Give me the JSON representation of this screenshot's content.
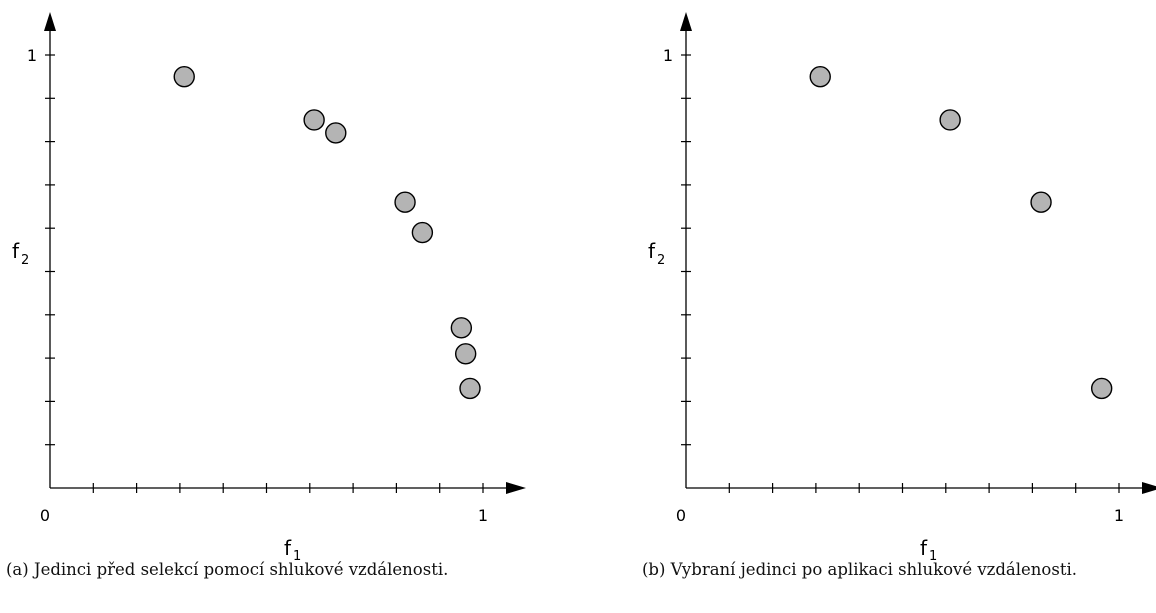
{
  "chart_data": [
    {
      "type": "scatter",
      "panel": "a",
      "xlabel": "f",
      "xlabel_sub": "1",
      "ylabel": "f",
      "ylabel_sub": "2",
      "xlim": [
        0,
        1
      ],
      "ylim": [
        0,
        1
      ],
      "x_tick_count": 10,
      "y_tick_count": 10,
      "x_tick_labels": [
        "0",
        "1"
      ],
      "y_tick_labels": [
        "1"
      ],
      "marker_fill": "#b4b4b4",
      "marker_stroke": "#000000",
      "points": [
        {
          "x": 0.31,
          "y": 0.95
        },
        {
          "x": 0.61,
          "y": 0.85
        },
        {
          "x": 0.66,
          "y": 0.82
        },
        {
          "x": 0.82,
          "y": 0.66
        },
        {
          "x": 0.86,
          "y": 0.59
        },
        {
          "x": 0.95,
          "y": 0.37
        },
        {
          "x": 0.96,
          "y": 0.31
        },
        {
          "x": 0.97,
          "y": 0.23
        }
      ],
      "caption": "(a) Jedinci před selekcí pomocí shlukové vzdálenosti."
    },
    {
      "type": "scatter",
      "panel": "b",
      "xlabel": "f",
      "xlabel_sub": "1",
      "ylabel": "f",
      "ylabel_sub": "2",
      "xlim": [
        0,
        1
      ],
      "ylim": [
        0,
        1
      ],
      "x_tick_count": 10,
      "y_tick_count": 10,
      "x_tick_labels": [
        "0",
        "1"
      ],
      "y_tick_labels": [
        "1"
      ],
      "marker_fill": "#b4b4b4",
      "marker_stroke": "#000000",
      "points": [
        {
          "x": 0.31,
          "y": 0.95
        },
        {
          "x": 0.61,
          "y": 0.85
        },
        {
          "x": 0.82,
          "y": 0.66
        },
        {
          "x": 0.96,
          "y": 0.23
        }
      ],
      "caption": "(b) Vybraní jedinci po aplikaci shlukové vzdálenosti."
    }
  ]
}
